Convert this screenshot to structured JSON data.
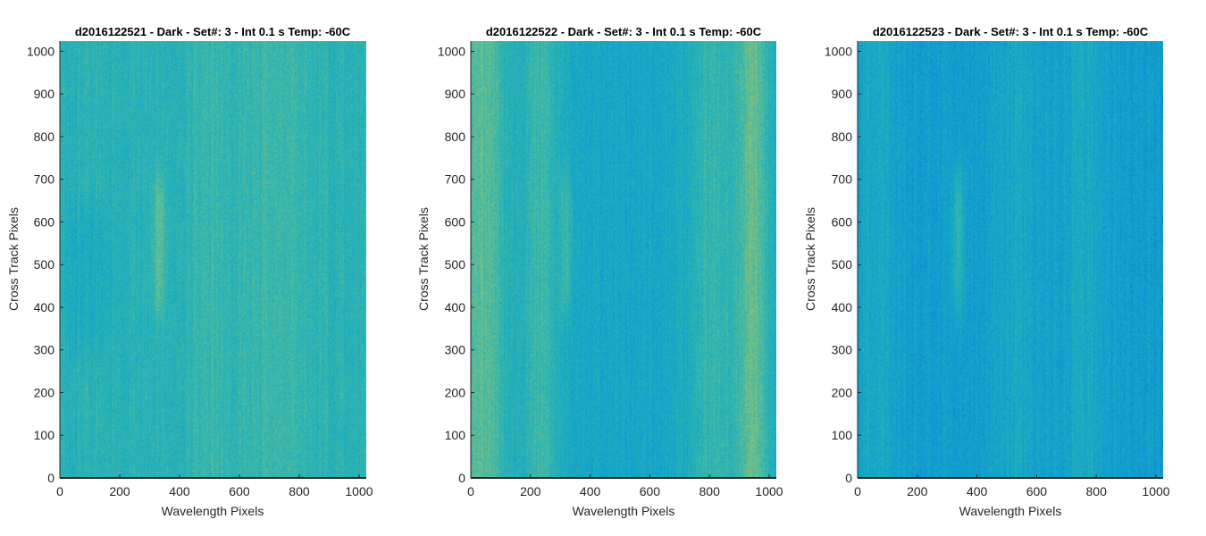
{
  "figure": {
    "background": "#ffffff",
    "colormap": [
      "#0b78c8",
      "#0f93d2",
      "#16a8c8",
      "#2db4b0",
      "#5ebd98",
      "#9cc46a",
      "#cfc744"
    ]
  },
  "chart_data": [
    {
      "type": "heatmap",
      "title": "d2016122521 - Dark - Set#: 3 - Int 0.1 s Temp: -60C",
      "xlabel": "Wavelength Pixels",
      "ylabel": "Cross Track Pixels",
      "xlim": [
        0,
        1024
      ],
      "ylim": [
        0,
        1024
      ],
      "xticks": [
        0,
        200,
        400,
        600,
        800,
        1000
      ],
      "yticks": [
        0,
        100,
        200,
        300,
        400,
        500,
        600,
        700,
        800,
        900,
        1000
      ],
      "base_level": 0.47,
      "features": [
        {
          "x": 330,
          "width": 40,
          "y_from": 380,
          "y_to": 720,
          "level": 0.66
        },
        {
          "x": 500,
          "width": 120,
          "y_from": 0,
          "y_to": 1024,
          "level": 0.55
        },
        {
          "x": 720,
          "width": 180,
          "y_from": 0,
          "y_to": 1024,
          "level": 0.55
        },
        {
          "x": 90,
          "width": 180,
          "y_from": 300,
          "y_to": 650,
          "level": 0.38
        }
      ],
      "seed": 21
    },
    {
      "type": "heatmap",
      "title": "d2016122522 - Dark - Set#: 3 - Int 0.1 s Temp: -60C",
      "xlabel": "Wavelength Pixels",
      "ylabel": "Cross Track Pixels",
      "xlim": [
        0,
        1024
      ],
      "ylim": [
        0,
        1024
      ],
      "xticks": [
        0,
        200,
        400,
        600,
        800,
        1000
      ],
      "yticks": [
        0,
        100,
        200,
        300,
        400,
        500,
        600,
        700,
        800,
        900,
        1000
      ],
      "base_level": 0.34,
      "features": [
        {
          "x": 40,
          "width": 160,
          "y_from": 0,
          "y_to": 1024,
          "level": 0.65
        },
        {
          "x": 230,
          "width": 130,
          "y_from": 0,
          "y_to": 1024,
          "level": 0.55
        },
        {
          "x": 940,
          "width": 120,
          "y_from": 0,
          "y_to": 1024,
          "level": 0.68
        },
        {
          "x": 800,
          "width": 140,
          "y_from": 0,
          "y_to": 1024,
          "level": 0.52
        },
        {
          "x": 320,
          "width": 40,
          "y_from": 380,
          "y_to": 720,
          "level": 0.5
        }
      ],
      "seed": 22
    },
    {
      "type": "heatmap",
      "title": "d2016122523 - Dark - Set#: 3 - Int 0.1 s Temp: -60C",
      "xlabel": "Wavelength Pixels",
      "ylabel": "Cross Track Pixels",
      "xlim": [
        0,
        1024
      ],
      "ylim": [
        0,
        1024
      ],
      "xticks": [
        0,
        200,
        400,
        600,
        800,
        1000
      ],
      "yticks": [
        0,
        100,
        200,
        300,
        400,
        500,
        600,
        700,
        800,
        900,
        1000
      ],
      "base_level": 0.25,
      "features": [
        {
          "x": 335,
          "width": 40,
          "y_from": 380,
          "y_to": 740,
          "level": 0.5
        },
        {
          "x": 60,
          "width": 140,
          "y_from": 0,
          "y_to": 1024,
          "level": 0.36
        },
        {
          "x": 520,
          "width": 160,
          "y_from": 0,
          "y_to": 1024,
          "level": 0.35
        },
        {
          "x": 760,
          "width": 150,
          "y_from": 0,
          "y_to": 1024,
          "level": 0.36
        }
      ],
      "seed": 23
    }
  ]
}
